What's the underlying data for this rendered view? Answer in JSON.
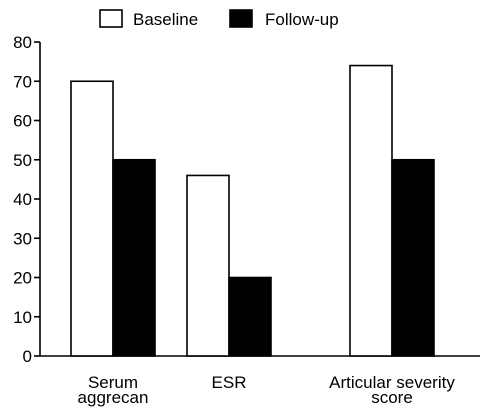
{
  "chart_data": {
    "type": "bar",
    "categories": [
      [
        "Serum",
        "aggrecan"
      ],
      [
        "ESR"
      ],
      [
        "Articular severity",
        "score"
      ]
    ],
    "series": [
      {
        "name": "Baseline",
        "values": [
          70,
          46,
          74
        ],
        "fill": "#ffffff"
      },
      {
        "name": "Follow-up",
        "values": [
          50,
          20,
          50
        ],
        "fill": "#000000"
      }
    ],
    "ylim": [
      0,
      80
    ],
    "yticks": [
      0,
      10,
      20,
      30,
      40,
      50,
      60,
      70,
      80
    ],
    "legend_position": "top",
    "grid": false
  }
}
